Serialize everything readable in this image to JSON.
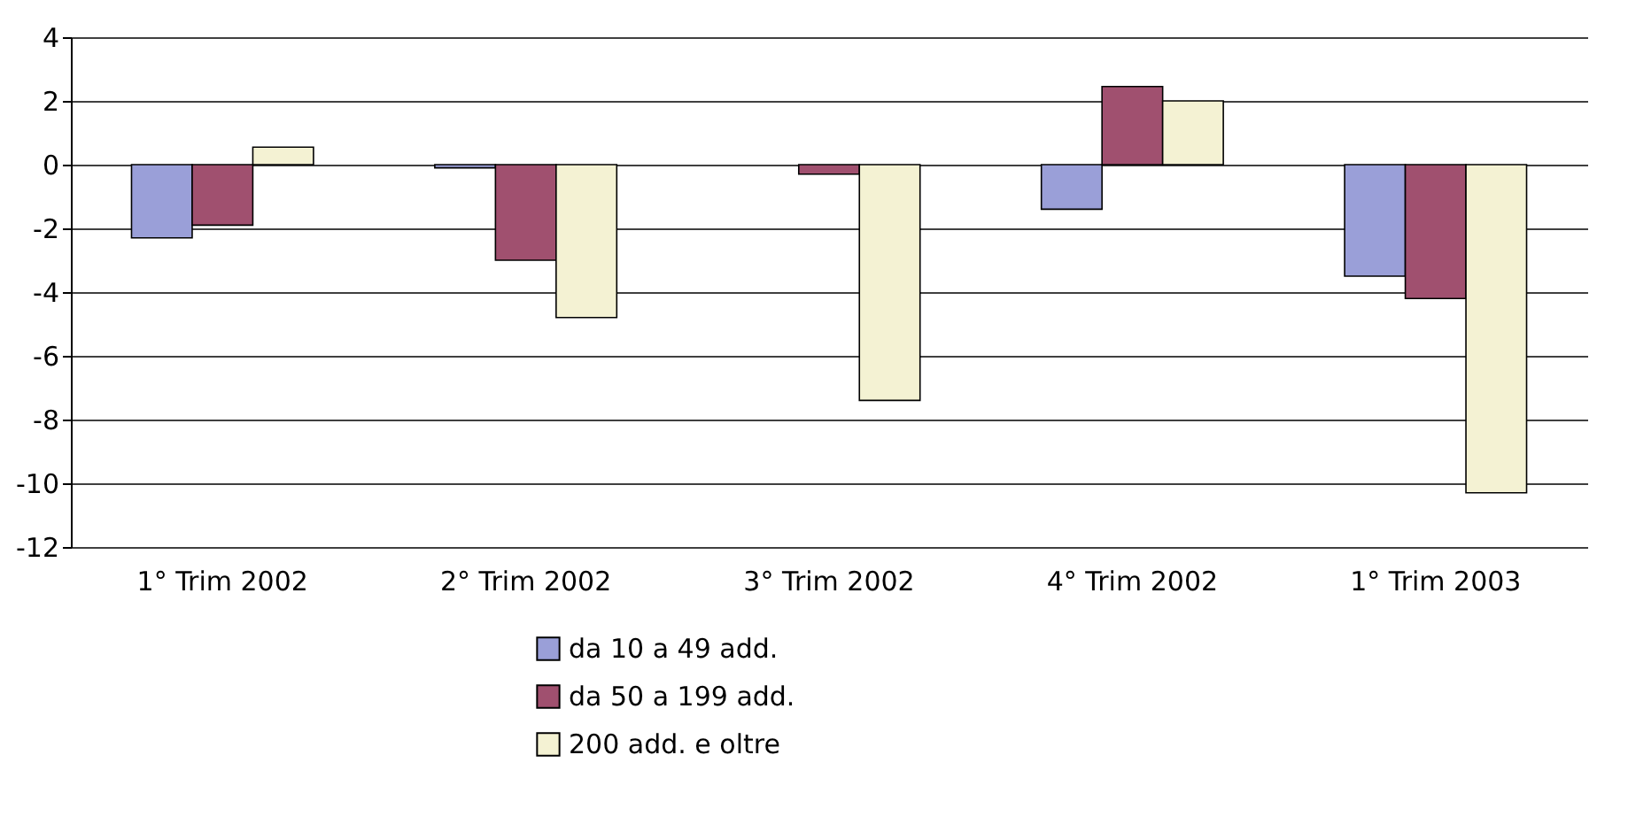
{
  "chart_data": {
    "type": "bar",
    "categories": [
      "1° Trim 2002",
      "2° Trim 2002",
      "3° Trim 2002",
      "4° Trim 2002",
      "1° Trim 2003"
    ],
    "series": [
      {
        "name": "da 10 a 49 add.",
        "color": "#9a9fd8",
        "values": [
          -2.3,
          -0.1,
          null,
          -1.4,
          -3.5
        ]
      },
      {
        "name": "da 50 a 199 add.",
        "color": "#a0506f",
        "values": [
          -1.9,
          -3.0,
          -0.3,
          2.45,
          -4.2
        ]
      },
      {
        "name": "200 add. e oltre",
        "color": "#f4f2d3",
        "values": [
          0.55,
          -4.8,
          -7.4,
          2.0,
          -10.3
        ]
      }
    ],
    "ylim": [
      -12,
      4
    ],
    "yticks": [
      -12,
      -10,
      -8,
      -6,
      -4,
      -2,
      0,
      2,
      4
    ],
    "grid": "y",
    "legend": "bottom"
  }
}
